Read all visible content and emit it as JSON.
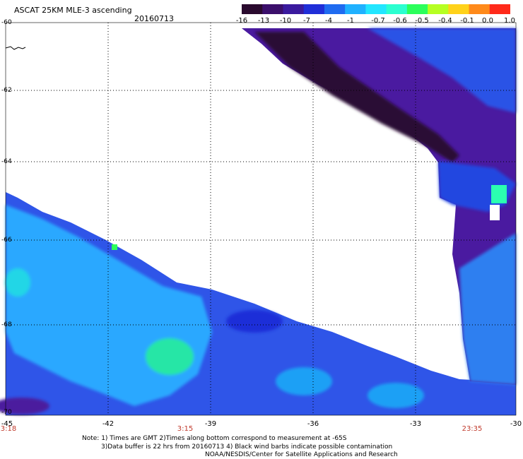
{
  "header": {
    "title": "ASCAT 25KM MLE-3 ascending",
    "date": "20160713"
  },
  "colorbar": {
    "labels": [
      "-16",
      "-13",
      "-10",
      "-7",
      "-4",
      "-1",
      "-0.7",
      "-0.6",
      "-0.5",
      "-0.4",
      "-0.1",
      "0.0",
      "1.0"
    ],
    "colors": [
      "#2a0a2e",
      "#3b0f6b",
      "#3a1a9e",
      "#1f2ed8",
      "#1f6bf0",
      "#1fb1ff",
      "#22e6ff",
      "#2bffd0",
      "#2bff5b",
      "#b6ff22",
      "#ffd21a",
      "#ff8a1a",
      "#ff2a1a"
    ]
  },
  "axes": {
    "lat_labels": [
      "-60",
      "-62",
      "-64",
      "-66",
      "-68",
      "-70"
    ],
    "lon_labels": [
      "-45",
      "-42",
      "-39",
      "-36",
      "-33",
      "-30"
    ]
  },
  "times": [
    "3:18",
    "3:15",
    "23:35"
  ],
  "footer": {
    "line1": "Note: 1) Times are GMT 2)Times along bottom correspond to measurement at -65S",
    "line2": "3)Data buffer is 22 hrs from 20160713 4) Black wind barbs indicate possible contamination",
    "line3": "NOAA/NESDIS/Center for Satellite Applications and Research"
  }
}
